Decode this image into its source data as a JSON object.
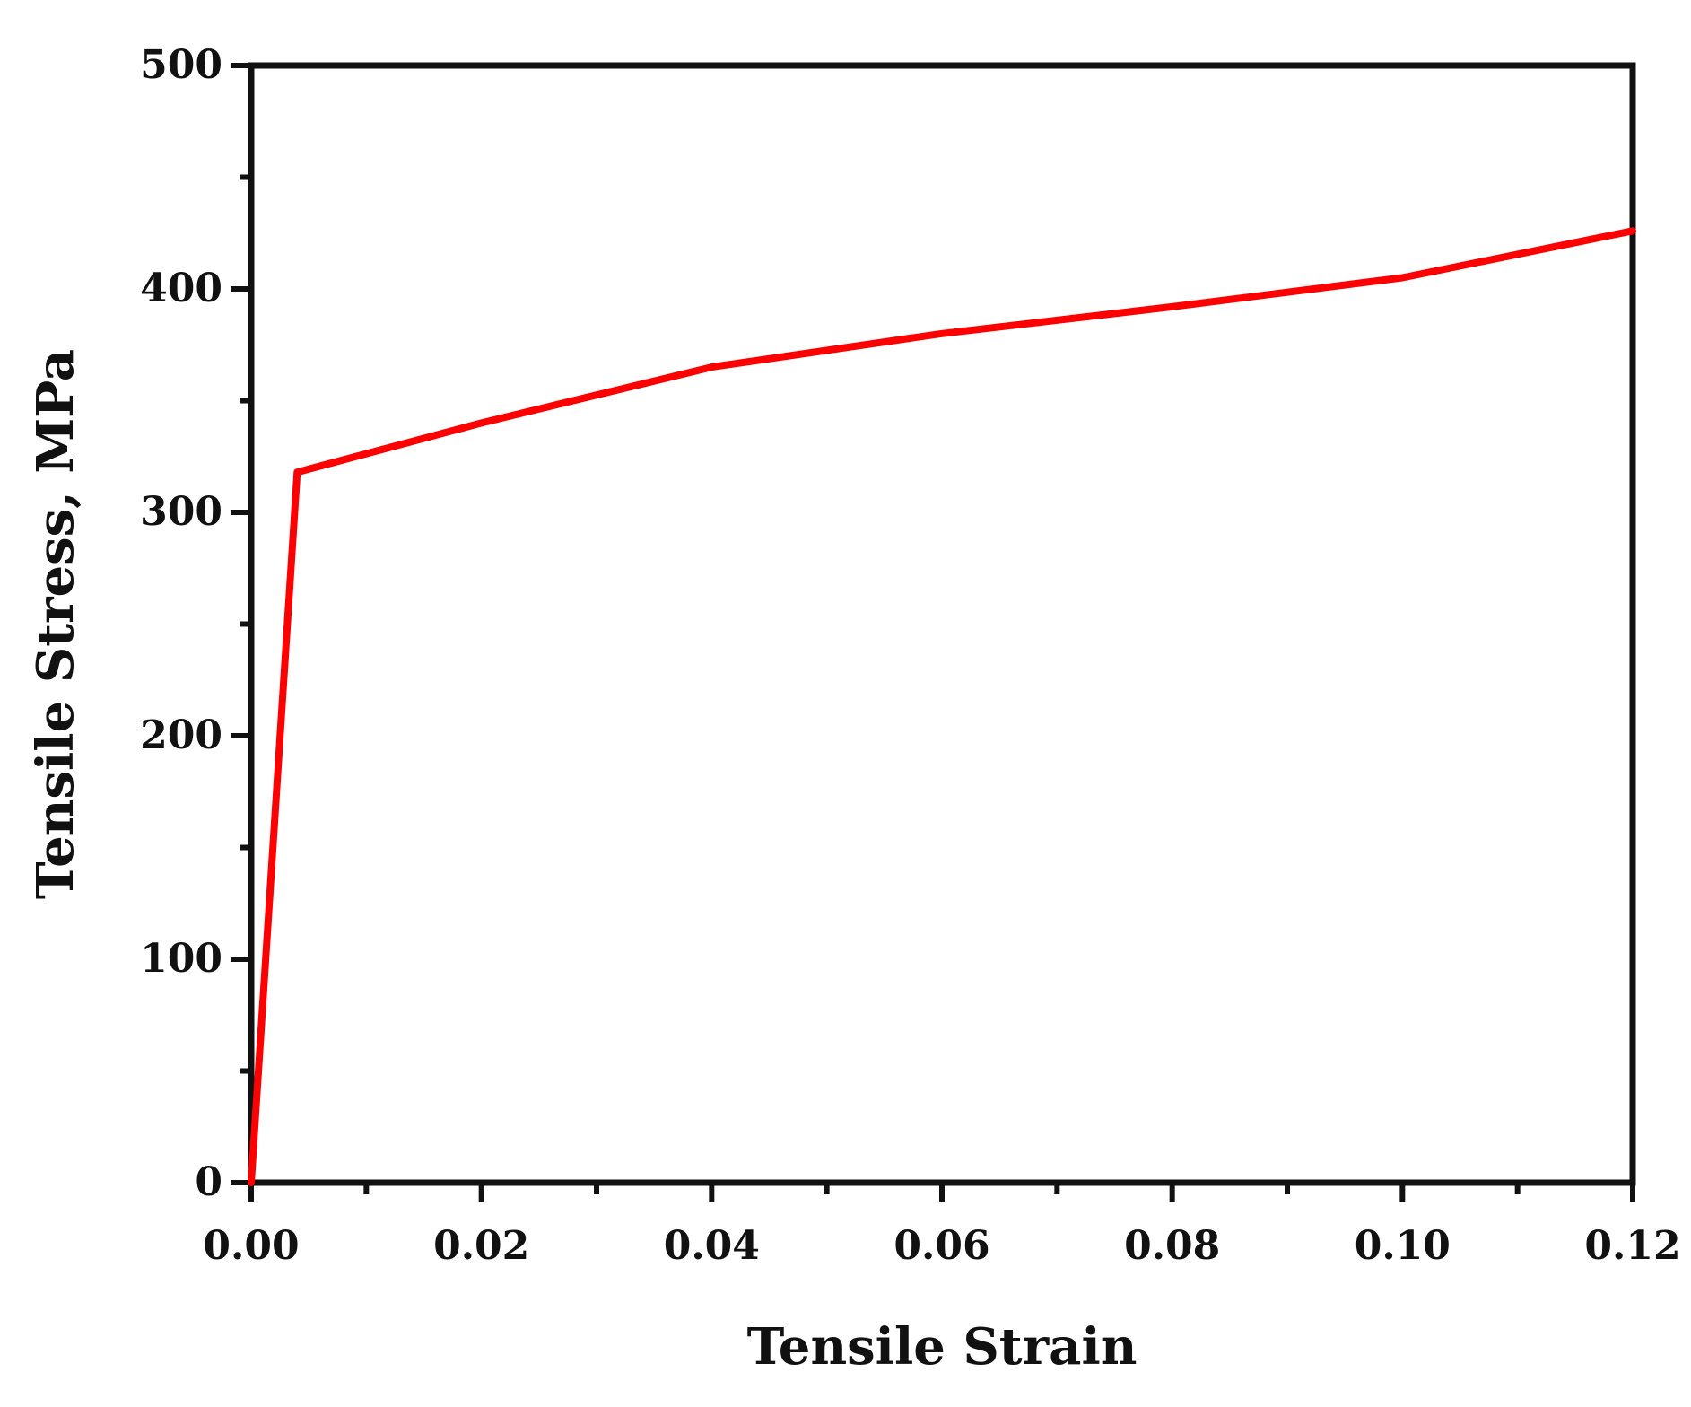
{
  "chart_data": {
    "type": "line",
    "title": "",
    "xlabel": "Tensile Strain",
    "ylabel": "Tensile Stress, MPa",
    "xlim": [
      0,
      0.12
    ],
    "ylim": [
      0,
      500
    ],
    "x_ticks": [
      0,
      0.02,
      0.04,
      0.06,
      0.08,
      0.1,
      0.12
    ],
    "x_tick_labels": [
      "0.00",
      "0.02",
      "0.04",
      "0.06",
      "0.08",
      "0.10",
      "0.12"
    ],
    "x_minor_ticks": [
      0.01,
      0.03,
      0.05,
      0.07,
      0.09,
      0.11
    ],
    "y_ticks": [
      0,
      100,
      200,
      300,
      400,
      500
    ],
    "y_tick_labels": [
      "0",
      "100",
      "200",
      "300",
      "400",
      "500"
    ],
    "y_minor_ticks": [
      50,
      150,
      250,
      350,
      450
    ],
    "grid": false,
    "legend": "none",
    "series": [
      {
        "color": "#ff0000",
        "x": [
          0,
          0.004,
          0.02,
          0.04,
          0.06,
          0.08,
          0.1,
          0.12
        ],
        "y": [
          0,
          318,
          340,
          365,
          380,
          392,
          405,
          426
        ]
      }
    ]
  }
}
